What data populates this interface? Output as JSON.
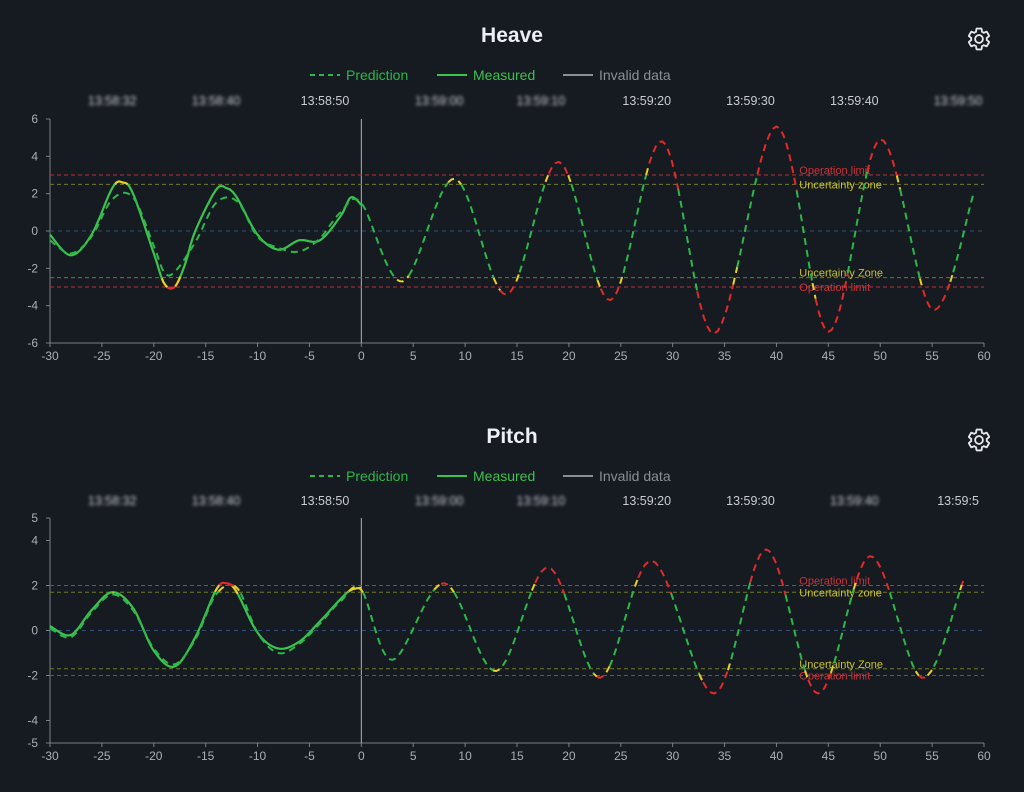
{
  "colors": {
    "background": "#161a21",
    "prediction_ok": "#2bb84a",
    "measured": "#3cc24e",
    "uncertainty": "#e8d227",
    "operation_limit": "#e02b2b",
    "invalid": "#8a8f97",
    "axis": "#7b8089"
  },
  "icons": {
    "settings": "gear-icon"
  },
  "legend": {
    "prediction": "Prediction",
    "measured": "Measured",
    "invalid": "Invalid data"
  },
  "panels": [
    {
      "id": "heave",
      "title": "Heave",
      "time_ticks": [
        "13:58:32",
        "13:58:40",
        "13:58:50",
        "13:59:00",
        "13:59:10",
        "13:59:20",
        "13:59:30",
        "13:59:40",
        "13:59:50"
      ],
      "time_ticks_blurred": [
        true,
        true,
        false,
        true,
        true,
        false,
        false,
        false,
        true
      ],
      "annotations": {
        "operation_limit_upper": "Operation limit",
        "uncertainty_upper": "Uncertainty zone",
        "uncertainty_lower": "Uncertainty Zone",
        "operation_limit_lower": "Operation limit"
      }
    },
    {
      "id": "pitch",
      "title": "Pitch",
      "time_ticks": [
        "13:58:32",
        "13:58:40",
        "13:58:50",
        "13:59:00",
        "13:59:10",
        "13:59:20",
        "13:59:30",
        "13:59:40",
        "13:59:5"
      ],
      "time_ticks_blurred": [
        true,
        true,
        false,
        true,
        true,
        false,
        false,
        true,
        false
      ],
      "annotations": {
        "operation_limit_upper": "Operation limit",
        "uncertainty_upper": "Uncertainty zone",
        "uncertainty_lower": "Uncertainty Zone",
        "operation_limit_lower": "Operation limit"
      }
    }
  ],
  "chart_data": [
    {
      "type": "line",
      "title": "Heave",
      "xlim": [
        -30,
        60
      ],
      "ylim": [
        -6,
        6
      ],
      "x_ticks": [
        -30,
        -25,
        -20,
        -15,
        -10,
        -5,
        0,
        5,
        10,
        15,
        20,
        25,
        30,
        35,
        40,
        45,
        50,
        55,
        60
      ],
      "y_ticks": [
        -6,
        -4,
        -2,
        0,
        2,
        4,
        6
      ],
      "operation_limit": [
        3,
        -3
      ],
      "uncertainty_zone": [
        2.5,
        -2.5
      ],
      "legend_position": "top-center",
      "series": [
        {
          "name": "Measured",
          "style": "solid",
          "x": [
            -30,
            -28,
            -26,
            -24,
            -23,
            -22,
            -20,
            -19,
            -18,
            -17,
            -16,
            -14,
            -13,
            -12,
            -10,
            -8,
            -6,
            -4,
            -2,
            -1,
            0
          ],
          "y": [
            -0.2,
            -1.3,
            -0.2,
            2.3,
            2.6,
            2.0,
            -1.2,
            -2.8,
            -3.0,
            -1.8,
            0.0,
            2.2,
            2.3,
            1.8,
            -0.2,
            -1.0,
            -0.5,
            -0.5,
            0.8,
            1.8,
            1.4
          ]
        },
        {
          "name": "Prediction",
          "style": "dashed",
          "x": [
            -30,
            -28,
            -26,
            -24,
            -22,
            -20,
            -19,
            -18,
            -16,
            -14,
            -12,
            -10,
            -8,
            -6,
            -4,
            -2,
            0,
            4,
            9,
            14,
            19,
            24,
            29,
            34,
            40,
            45,
            50,
            55,
            59
          ],
          "y": [
            -0.5,
            -1.2,
            -0.3,
            1.7,
            1.8,
            -0.8,
            -2.2,
            -2.2,
            -0.6,
            1.5,
            1.6,
            -0.3,
            -0.9,
            -1.1,
            -0.4,
            1.0,
            1.5,
            -2.7,
            2.8,
            -3.4,
            3.7,
            -3.7,
            4.8,
            -5.5,
            5.6,
            -5.4,
            4.9,
            -4.2,
            2.0
          ]
        }
      ]
    },
    {
      "type": "line",
      "title": "Pitch",
      "xlim": [
        -30,
        60
      ],
      "ylim": [
        -5,
        5
      ],
      "x_ticks": [
        -30,
        -25,
        -20,
        -15,
        -10,
        -5,
        0,
        5,
        10,
        15,
        20,
        25,
        30,
        35,
        40,
        45,
        50,
        55,
        60
      ],
      "y_ticks": [
        -5,
        -4,
        -2,
        0,
        2,
        4,
        5
      ],
      "operation_limit": [
        2,
        -2
      ],
      "uncertainty_zone": [
        1.7,
        -1.7
      ],
      "legend_position": "top-center",
      "series": [
        {
          "name": "Measured",
          "style": "solid",
          "x": [
            -30,
            -28,
            -26,
            -24,
            -22,
            -20,
            -18,
            -16,
            -14,
            -13,
            -12,
            -10,
            -8,
            -6,
            -4,
            -2,
            -1,
            0
          ],
          "y": [
            0.2,
            -0.2,
            0.9,
            1.7,
            1.0,
            -0.9,
            -1.6,
            -0.3,
            1.8,
            2.1,
            1.7,
            -0.1,
            -0.8,
            -0.5,
            0.4,
            1.4,
            1.8,
            1.9
          ]
        },
        {
          "name": "Prediction",
          "style": "dashed",
          "x": [
            -30,
            -28,
            -26,
            -24,
            -22,
            -20,
            -18,
            -16,
            -14,
            -12,
            -10,
            -8,
            -6,
            -4,
            -2,
            0,
            3,
            8,
            13,
            18,
            23,
            28,
            34,
            39,
            44,
            49,
            54,
            58
          ],
          "y": [
            0.1,
            -0.3,
            0.8,
            1.6,
            0.9,
            -0.8,
            -1.5,
            -0.4,
            1.6,
            1.9,
            -0.1,
            -1.0,
            -0.6,
            0.3,
            1.3,
            1.8,
            -1.3,
            2.1,
            -1.8,
            2.8,
            -2.1,
            3.1,
            -2.8,
            3.6,
            -2.8,
            3.3,
            -2.1,
            2.2
          ]
        }
      ]
    }
  ]
}
